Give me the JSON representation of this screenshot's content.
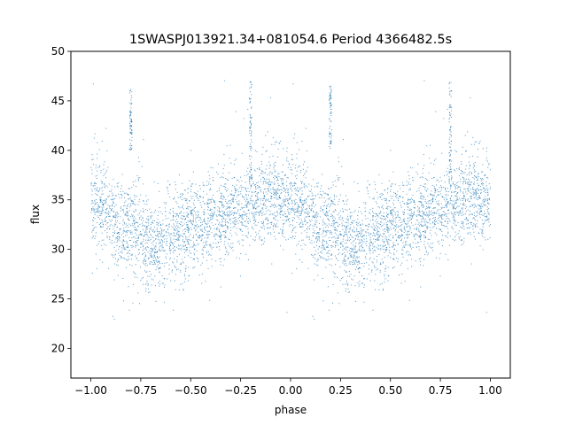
{
  "chart_data": {
    "type": "scatter",
    "title": "1SWASPJ013921.34+081054.6 Period 4366482.5s",
    "xlabel": "phase",
    "ylabel": "flux",
    "xlim": [
      -1.1,
      1.1
    ],
    "ylim": [
      17,
      50
    ],
    "x_ticks": [
      -1.0,
      -0.75,
      -0.5,
      -0.25,
      0.0,
      0.25,
      0.5,
      0.75,
      1.0
    ],
    "x_tick_labels": [
      "−1.00",
      "−0.75",
      "−0.50",
      "−0.25",
      "0.00",
      "0.25",
      "0.50",
      "0.75",
      "1.00"
    ],
    "y_ticks": [
      20,
      25,
      30,
      35,
      40,
      45,
      50
    ],
    "y_tick_labels": [
      "20",
      "25",
      "30",
      "35",
      "40",
      "45",
      "50"
    ],
    "grid": false,
    "legend": "none",
    "point_color": "#1f77b4",
    "profile": {
      "phase": [
        0.0,
        0.05,
        0.1,
        0.15,
        0.2,
        0.25,
        0.3,
        0.35,
        0.4,
        0.45,
        0.5,
        0.55,
        0.6,
        0.65,
        0.7,
        0.75,
        0.8,
        0.85,
        0.9,
        0.95,
        1.0
      ],
      "median_flux": [
        35.0,
        34.5,
        33.5,
        32.5,
        32.0,
        31.5,
        30.5,
        30.5,
        31.5,
        32.0,
        32.5,
        32.0,
        33.0,
        33.5,
        34.0,
        34.0,
        34.5,
        35.0,
        35.5,
        35.0,
        35.0
      ]
    },
    "flare_columns": [
      {
        "phase": -0.8,
        "flux_range": [
          40,
          46.5
        ]
      },
      {
        "phase": -0.2,
        "flux_range": [
          37,
          47
        ]
      },
      {
        "phase": 0.2,
        "flux_range": [
          40,
          46.5
        ]
      },
      {
        "phase": 0.8,
        "flux_range": [
          37,
          47
        ]
      }
    ]
  }
}
